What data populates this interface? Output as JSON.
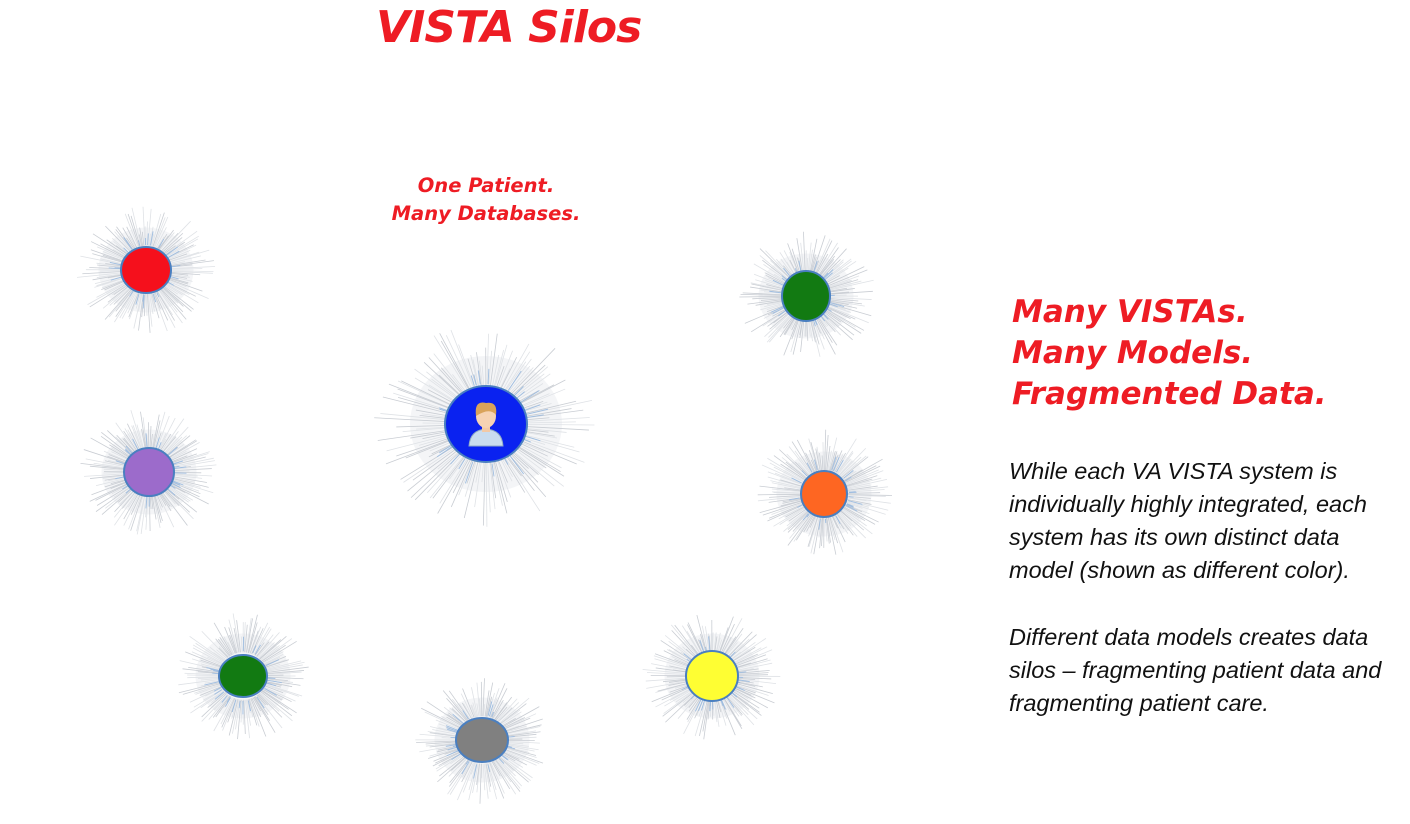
{
  "title": "VISTA Silos",
  "patient_caption": {
    "line1": "One Patient.",
    "line2": "Many Databases."
  },
  "headline": {
    "line1": "Many VISTAs.",
    "line2": "Many Models.",
    "line3": "Fragmented Data."
  },
  "description": {
    "paragraph1_lines": [
      "While each  VA VISTA system is",
      "individually highly integrated, each",
      "system has its own distinct data",
      "model (shown as different color)."
    ],
    "paragraph2_lines": [
      "Different data models creates data",
      "silos – fragmenting patient data and",
      "fragmenting patient care."
    ]
  },
  "colors": {
    "title_red": "#ee1c24",
    "node_outline": "#4a7fc0"
  },
  "nodes": [
    {
      "id": "vista-red",
      "color": "#f5101c"
    },
    {
      "id": "vista-green-top",
      "color": "#127a12"
    },
    {
      "id": "patient-center",
      "color": "#0a22f0",
      "icon": "patient-icon"
    },
    {
      "id": "vista-purple",
      "color": "#9c6bcb"
    },
    {
      "id": "vista-orange",
      "color": "#fe6622"
    },
    {
      "id": "vista-green-bottom",
      "color": "#127a12"
    },
    {
      "id": "vista-yellow",
      "color": "#fefe33"
    },
    {
      "id": "vista-gray",
      "color": "#808080"
    }
  ]
}
